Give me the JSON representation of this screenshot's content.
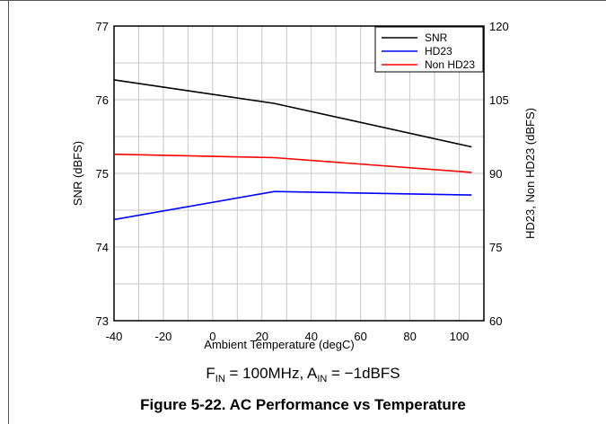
{
  "chart_data": {
    "type": "line",
    "x": [
      -40,
      25,
      105
    ],
    "xlabel": "Ambient Temperature (degC)",
    "xlim": [
      -40,
      110
    ],
    "xticks": [
      "-40",
      "-20",
      "0",
      "20",
      "40",
      "60",
      "80",
      "100"
    ],
    "ylabel_left": "SNR (dBFS)",
    "ylim_left": [
      73,
      77
    ],
    "yticks_left": [
      "73",
      "74",
      "75",
      "76",
      "77"
    ],
    "ylabel_right": "HD23, Non HD23 (dBFS)",
    "ylim_right": [
      60,
      120
    ],
    "yticks_right": [
      "60",
      "75",
      "90",
      "105",
      "120"
    ],
    "grid": true,
    "legend_position": "top-right",
    "series": [
      {
        "name": "SNR",
        "axis": "left",
        "color": "#000000",
        "values": [
          76.27,
          75.95,
          75.36
        ]
      },
      {
        "name": "HD23",
        "axis": "right",
        "color": "#0000ff",
        "values": [
          80.6,
          86.3,
          85.6
        ]
      },
      {
        "name": "Non HD23",
        "axis": "right",
        "color": "#ff0000",
        "values": [
          93.9,
          93.2,
          90.2
        ]
      }
    ]
  },
  "caption": {
    "cond_f": "F",
    "cond_f_sub": "IN",
    "cond_mid": " = 100MHz, A",
    "cond_a_sub": "IN",
    "cond_end": " = −1dBFS",
    "figure": "Figure 5-22. AC Performance vs Temperature"
  }
}
